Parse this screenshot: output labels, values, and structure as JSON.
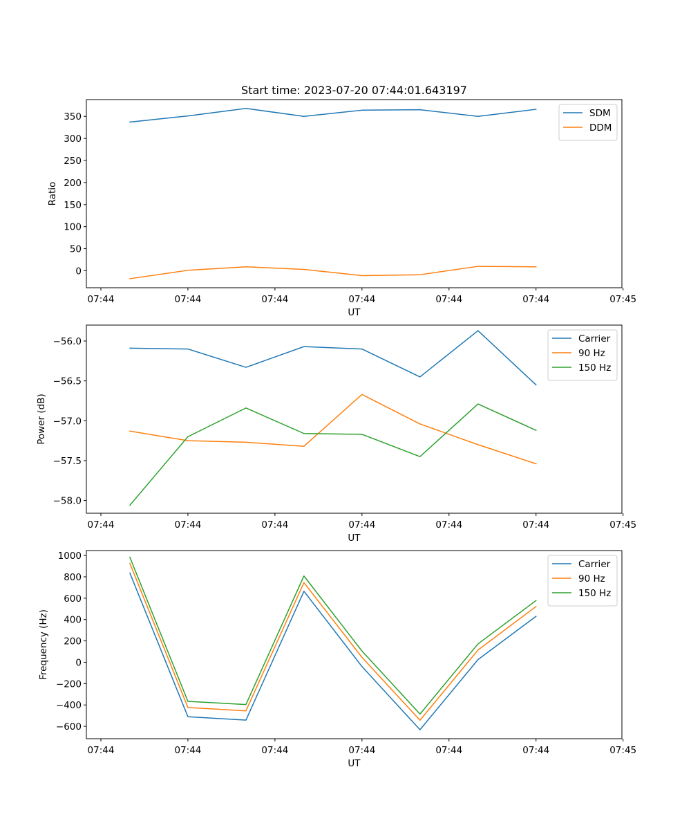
{
  "figure_title": "Start time: 2023-07-20 07:44:01.643197",
  "chart_data": [
    {
      "type": "line",
      "title": "Start time: 2023-07-20 07:44:01.643197",
      "xlabel": "UT",
      "ylabel": "Ratio",
      "x": [
        1,
        2,
        3,
        4,
        5,
        6,
        7,
        8
      ],
      "xlim": [
        0.25,
        9.48
      ],
      "xticks": [
        0.5,
        2.0,
        3.5,
        5.0,
        6.5,
        8.0,
        9.5
      ],
      "xtick_labels": [
        "07:44",
        "07:44",
        "07:44",
        "07:44",
        "07:44",
        "07:44",
        "07:45"
      ],
      "ylim": [
        -38.5,
        388
      ],
      "yticks": [
        0,
        50,
        100,
        150,
        200,
        250,
        300,
        350
      ],
      "ytick_labels": [
        "0",
        "50",
        "100",
        "150",
        "200",
        "250",
        "300",
        "350"
      ],
      "legend_position": "top-right",
      "series": [
        {
          "name": "SDM",
          "color": "#1f77b4",
          "values": [
            337,
            351,
            368,
            350,
            364,
            365,
            350,
            366
          ]
        },
        {
          "name": "DDM",
          "color": "#ff7f0e",
          "values": [
            -18,
            1,
            9,
            3,
            -11,
            -9,
            10,
            9
          ]
        }
      ]
    },
    {
      "type": "line",
      "title": "",
      "xlabel": "UT",
      "ylabel": "Power (dB)",
      "x": [
        1,
        2,
        3,
        4,
        5,
        6,
        7,
        8
      ],
      "xlim": [
        0.25,
        9.48
      ],
      "xticks": [
        0.5,
        2.0,
        3.5,
        5.0,
        6.5,
        8.0,
        9.5
      ],
      "xtick_labels": [
        "07:44",
        "07:44",
        "07:44",
        "07:44",
        "07:44",
        "07:44",
        "07:45"
      ],
      "ylim": [
        -58.16,
        -55.8
      ],
      "yticks": [
        -58.0,
        -57.5,
        -57.0,
        -56.5,
        -56.0
      ],
      "ytick_labels": [
        "−58.0",
        "−57.5",
        "−57.0",
        "−56.5",
        "−56.0"
      ],
      "legend_position": "top-right",
      "series": [
        {
          "name": "Carrier",
          "color": "#1f77b4",
          "values": [
            -56.09,
            -56.1,
            -56.33,
            -56.07,
            -56.1,
            -56.45,
            -55.87,
            -56.55
          ]
        },
        {
          "name": "90 Hz",
          "color": "#ff7f0e",
          "values": [
            -57.13,
            -57.25,
            -57.27,
            -57.32,
            -56.67,
            -57.04,
            -57.3,
            -57.54
          ]
        },
        {
          "name": "150 Hz",
          "color": "#2ca02c",
          "values": [
            -58.06,
            -57.2,
            -56.84,
            -57.16,
            -57.17,
            -57.45,
            -56.79,
            -57.12
          ]
        }
      ]
    },
    {
      "type": "line",
      "title": "",
      "xlabel": "UT",
      "ylabel": "Frequency (Hz)",
      "x": [
        1,
        2,
        3,
        4,
        5,
        6,
        7,
        8
      ],
      "xlim": [
        0.25,
        9.48
      ],
      "xticks": [
        0.5,
        2.0,
        3.5,
        5.0,
        6.5,
        8.0,
        9.5
      ],
      "xtick_labels": [
        "07:44",
        "07:44",
        "07:44",
        "07:44",
        "07:44",
        "07:44",
        "07:45"
      ],
      "ylim": [
        -716,
        1046
      ],
      "yticks": [
        -600,
        -400,
        -200,
        0,
        200,
        400,
        600,
        800,
        1000
      ],
      "ytick_labels": [
        "−600",
        "−400",
        "−200",
        "0",
        "200",
        "400",
        "600",
        "800",
        "1000"
      ],
      "legend_position": "top-right",
      "series": [
        {
          "name": "Carrier",
          "color": "#1f77b4",
          "values": [
            835,
            -510,
            -542,
            665,
            -40,
            -632,
            25,
            430
          ]
        },
        {
          "name": "90 Hz",
          "color": "#ff7f0e",
          "values": [
            926,
            -424,
            -455,
            746,
            46,
            -543,
            115,
            522
          ]
        },
        {
          "name": "150 Hz",
          "color": "#2ca02c",
          "values": [
            983,
            -366,
            -396,
            808,
            105,
            -485,
            172,
            578
          ]
        }
      ]
    }
  ]
}
